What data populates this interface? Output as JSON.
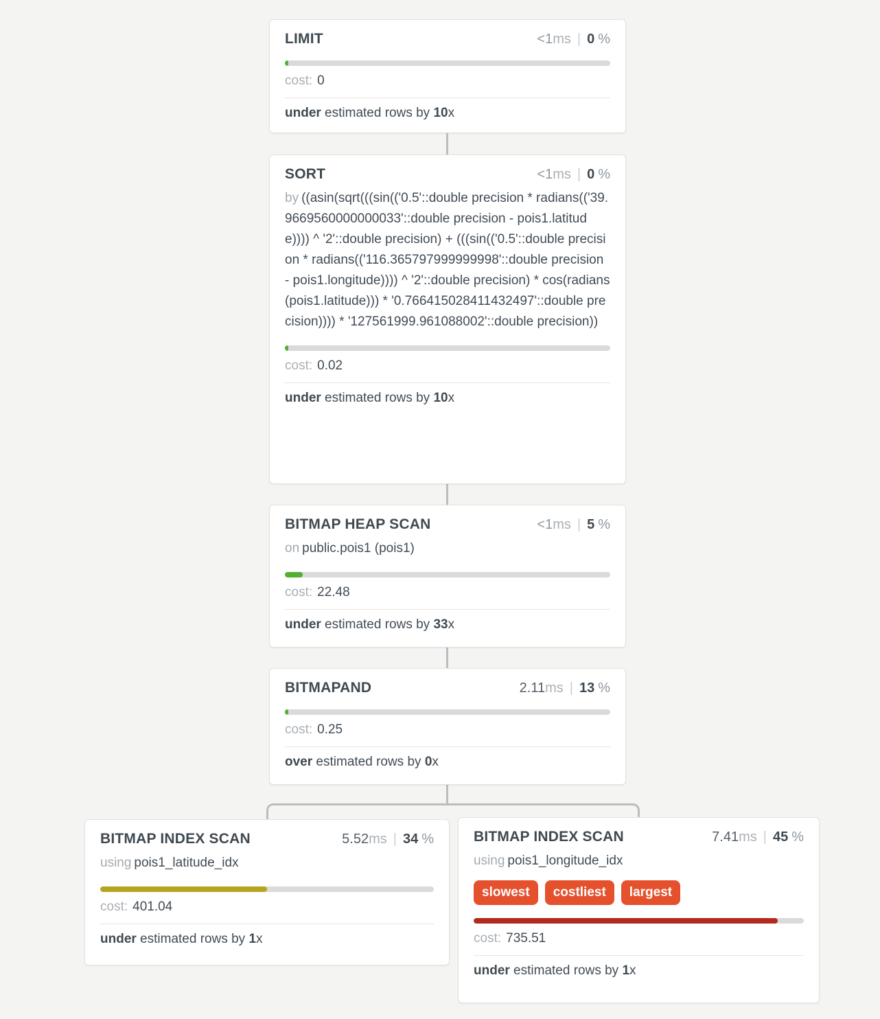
{
  "palette": {
    "page_background": "#f4f4f3",
    "bar_track": "#dadada",
    "bar_green": "#51af31",
    "bar_olive": "#b5a41e",
    "bar_red": "#b22b1e",
    "badge_background": "#e6512d",
    "connector": "#bcbcbc"
  },
  "nodes": [
    {
      "type": "LIMIT",
      "duration_value": "<1",
      "duration_unit": "ms",
      "duration_muted": true,
      "percent_value": "0",
      "percent_unit": "%",
      "bar": {
        "color": "#51af31",
        "width_pct": 1
      },
      "cost_label": "cost:",
      "cost_value": "0",
      "estimate": {
        "emphasis": "under",
        "text": " estimated rows by ",
        "factor": "10",
        "suffix": "x"
      }
    },
    {
      "type": "SORT",
      "duration_value": "<1",
      "duration_unit": "ms",
      "duration_muted": true,
      "percent_value": "0",
      "percent_unit": "%",
      "detail": {
        "keyword": "by",
        "text": "((asin(sqrt(((sin(('0.5'::double precision * radians(('39.9669560000000033'::double precision - pois1.latitude)))) ^ '2'::double precision) + (((sin(('0.5'::double precision * radians(('116.365797999999998'::double precision - pois1.longitude)))) ^ '2'::double precision) * cos(radians(pois1.latitude))) * '0.766415028411432497'::double precision)))) * '127561999.961088002'::double precision))"
      },
      "bar": {
        "color": "#51af31",
        "width_pct": 1
      },
      "cost_label": "cost:",
      "cost_value": "0.02",
      "estimate": {
        "emphasis": "under",
        "text": " estimated rows by ",
        "factor": "10",
        "suffix": "x"
      }
    },
    {
      "type": "BITMAP HEAP SCAN",
      "duration_value": "<1",
      "duration_unit": "ms",
      "duration_muted": true,
      "percent_value": "5",
      "percent_unit": "%",
      "detail": {
        "keyword": "on",
        "text": "public.pois1 (pois1)"
      },
      "bar": {
        "color": "#51af31",
        "width_pct": 5.5
      },
      "cost_label": "cost:",
      "cost_value": "22.48",
      "estimate": {
        "emphasis": "under",
        "text": " estimated rows by ",
        "factor": "33",
        "suffix": "x"
      }
    },
    {
      "type": "BITMAPAND",
      "duration_value": "2.11",
      "duration_unit": "ms",
      "duration_muted": false,
      "percent_value": "13",
      "percent_unit": "%",
      "bar": {
        "color": "#51af31",
        "width_pct": 1
      },
      "cost_label": "cost:",
      "cost_value": "0.25",
      "estimate": {
        "emphasis": "over",
        "text": " estimated rows by ",
        "factor": "0",
        "suffix": "x"
      }
    },
    {
      "type": "BITMAP INDEX SCAN",
      "duration_value": "5.52",
      "duration_unit": "ms",
      "duration_muted": false,
      "percent_value": "34",
      "percent_unit": "%",
      "detail": {
        "keyword": "using",
        "text": "pois1_latitude_idx"
      },
      "bar": {
        "color": "#b5a41e",
        "width_pct": 50
      },
      "cost_label": "cost:",
      "cost_value": "401.04",
      "estimate": {
        "emphasis": "under",
        "text": " estimated rows by ",
        "factor": "1",
        "suffix": "x"
      }
    },
    {
      "type": "BITMAP INDEX SCAN",
      "duration_value": "7.41",
      "duration_unit": "ms",
      "duration_muted": false,
      "percent_value": "45",
      "percent_unit": "%",
      "detail": {
        "keyword": "using",
        "text": "pois1_longitude_idx"
      },
      "badges": [
        "slowest",
        "costliest",
        "largest"
      ],
      "bar": {
        "color": "#b22b1e",
        "width_pct": 92
      },
      "cost_label": "cost:",
      "cost_value": "735.51",
      "estimate": {
        "emphasis": "under",
        "text": " estimated rows by ",
        "factor": "1",
        "suffix": "x"
      }
    }
  ]
}
